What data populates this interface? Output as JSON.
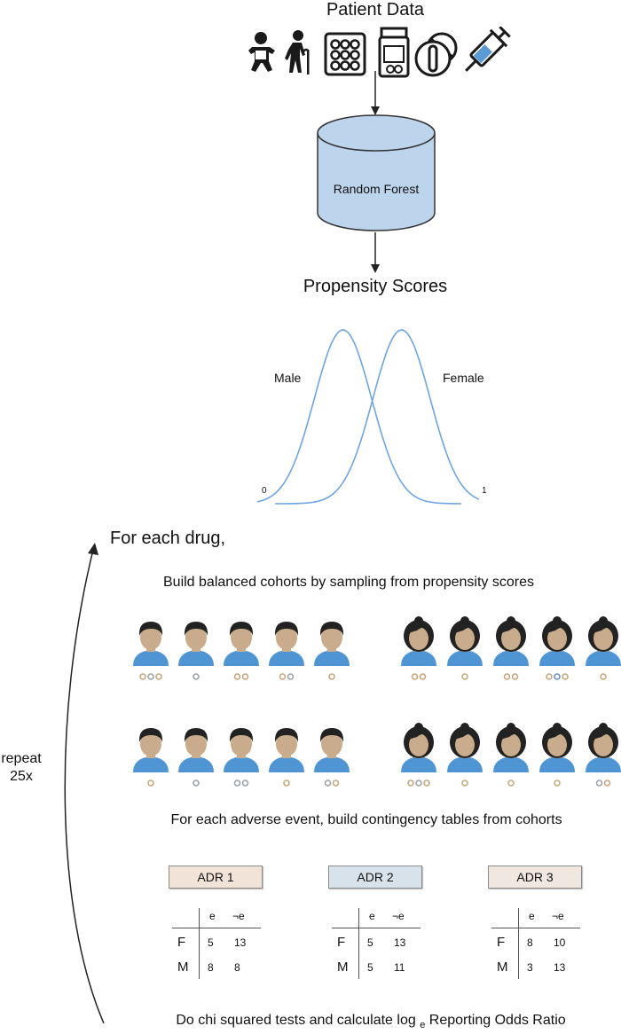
{
  "header": {
    "title": "Patient Data"
  },
  "icons": [
    "baby-icon",
    "elderly-person-icon",
    "pill-blister-icon",
    "pill-bottle-icon",
    "tablets-icon",
    "syringe-icon"
  ],
  "model": {
    "label": "Random Forest",
    "output_label": "Propensity Scores"
  },
  "distribution": {
    "male_label": "Male",
    "female_label": "Female",
    "axis_min": "0",
    "axis_max": "1"
  },
  "loop": {
    "title": "For each drug,",
    "repeat_label_line1": "repeat",
    "repeat_label_line2": "25x"
  },
  "cohorts": {
    "caption": "Build balanced cohorts by sampling from propensity scores",
    "male_rows": [
      [
        [
          "tan",
          "grey",
          "tan"
        ],
        [
          "grey"
        ],
        [
          "tan",
          "tan"
        ],
        [
          "tan",
          "grey"
        ],
        [
          "tan"
        ]
      ],
      [
        [
          "tan"
        ],
        [
          "grey"
        ],
        [
          "grey",
          "grey"
        ],
        [
          "tan"
        ],
        [
          "grey",
          "tan"
        ]
      ]
    ],
    "female_rows": [
      [
        [
          "tan",
          "tan"
        ],
        [
          "tan"
        ],
        [
          "tan",
          "tan"
        ],
        [
          "tan",
          "blue",
          "tan"
        ],
        [
          "tan"
        ]
      ],
      [
        [
          "tan",
          "grey",
          "tan"
        ],
        [
          "tan"
        ],
        [
          "tan"
        ],
        [
          "tan"
        ],
        [
          "grey",
          "tan"
        ]
      ]
    ]
  },
  "contingency": {
    "caption": "For each adverse event, build contingency tables from cohorts",
    "col_headers": [
      "e",
      "¬e"
    ],
    "row_headers": [
      "F",
      "M"
    ],
    "tables": [
      {
        "name": "ADR 1",
        "color": "#f1e3d8",
        "values": [
          [
            "5",
            "13"
          ],
          [
            "8",
            "8"
          ]
        ]
      },
      {
        "name": "ADR 2",
        "color": "#d8e2ea",
        "values": [
          [
            "5",
            "13"
          ],
          [
            "5",
            "11"
          ]
        ]
      },
      {
        "name": "ADR 3",
        "color": "#efe7e0",
        "values": [
          [
            "8",
            "10"
          ],
          [
            "3",
            "13"
          ]
        ]
      }
    ]
  },
  "footer": {
    "caption_prefix": "Do chi squared tests and calculate log",
    "caption_subscript": "e",
    "caption_suffix": "Reporting Odds Ratio"
  },
  "colors": {
    "cylinder_fill": "#bcd5ec",
    "curve": "#6fa5e0",
    "shirt": "#4f94d3",
    "skin": "#c8ac8c",
    "hair": "#222222",
    "dot_tan": "#c9a77e",
    "dot_grey": "#9ea3a8",
    "dot_blue": "#6d8fc7"
  }
}
